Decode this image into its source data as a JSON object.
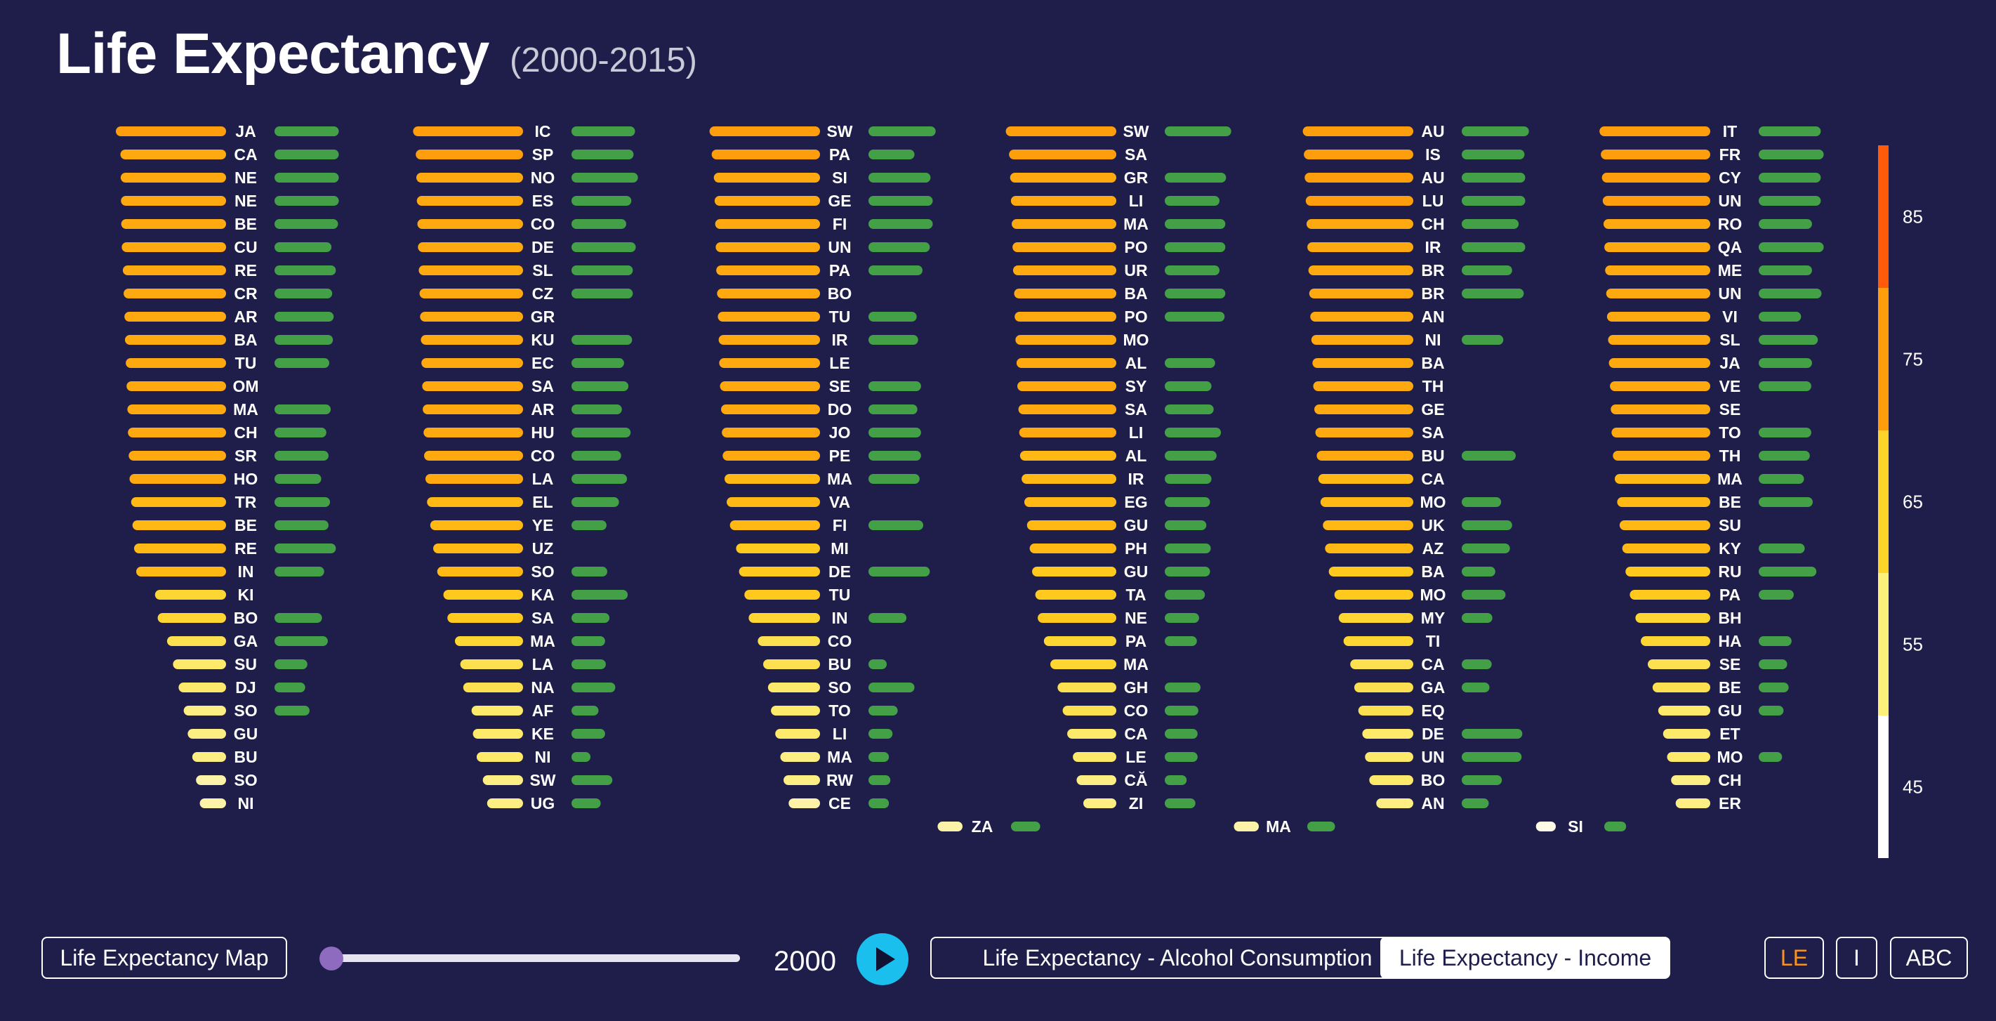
{
  "header": {
    "title": "Life Expectancy",
    "subtitle": "(2000-2015)"
  },
  "controls": {
    "map_button": "Life Expectancy Map",
    "year": "2000",
    "alcohol_button": "Life Expectancy - Alcohol Consumption",
    "income_button": "Life Expectancy - Income",
    "sort_le": "LE",
    "sort_i": "I",
    "sort_abc": "ABC",
    "slider_fraction": 0.0
  },
  "colors": {
    "background": "#1f1e4a",
    "income_bar": "#43a047",
    "play": "#1bbfee",
    "slider_thumb": "#8e6bbf"
  },
  "chart_data": {
    "type": "bar",
    "description_free": true,
    "year": "2000",
    "le_scale": [
      40,
      90
    ],
    "colorbar": {
      "ticks": [
        "85",
        "75",
        "65",
        "55",
        "45"
      ],
      "bands": [
        {
          "from": 80,
          "to": 90,
          "color": "#ff5a0a"
        },
        {
          "from": 70,
          "to": 80,
          "color": "#ff9e0d"
        },
        {
          "from": 60,
          "to": 70,
          "color": "#fdd427"
        },
        {
          "from": 50,
          "to": 60,
          "color": "#fdf07a"
        },
        {
          "from": 40,
          "to": 50,
          "color": "#ffffff"
        }
      ]
    },
    "columns": [
      [
        {
          "code": "JA",
          "le": 81.1,
          "income": 0.88
        },
        {
          "code": "CA",
          "le": 79.4,
          "income": 0.88
        },
        {
          "code": "NE",
          "le": 79.3,
          "income": 0.88
        },
        {
          "code": "NE",
          "le": 79.2,
          "income": 0.88
        },
        {
          "code": "BE",
          "le": 79.1,
          "income": 0.87
        },
        {
          "code": "CU",
          "le": 78.9,
          "income": 0.78
        },
        {
          "code": "RE",
          "le": 78.5,
          "income": 0.84
        },
        {
          "code": "CR",
          "le": 78.2,
          "income": 0.79
        },
        {
          "code": "AR",
          "le": 77.9,
          "income": 0.81
        },
        {
          "code": "BA",
          "le": 77.7,
          "income": 0.8
        },
        {
          "code": "TU",
          "le": 77.4,
          "income": 0.75
        },
        {
          "code": "OM",
          "le": 77.1,
          "income": null
        },
        {
          "code": "MA",
          "le": 76.8,
          "income": 0.77
        },
        {
          "code": "CH",
          "le": 76.6,
          "income": 0.71
        },
        {
          "code": "SR",
          "le": 76.3,
          "income": 0.74
        },
        {
          "code": "HO",
          "le": 76.0,
          "income": 0.64
        },
        {
          "code": "TR",
          "le": 75.4,
          "income": 0.76
        },
        {
          "code": "BE",
          "le": 74.9,
          "income": 0.74
        },
        {
          "code": "RE",
          "le": 74.3,
          "income": 0.84
        },
        {
          "code": "IN",
          "le": 73.5,
          "income": 0.68
        },
        {
          "code": "KI",
          "le": 66.5,
          "income": null
        },
        {
          "code": "BO",
          "le": 65.5,
          "income": 0.65
        },
        {
          "code": "GA",
          "le": 62.0,
          "income": 0.73
        },
        {
          "code": "SU",
          "le": 59.8,
          "income": 0.45
        },
        {
          "code": "DJ",
          "le": 57.7,
          "income": 0.42
        },
        {
          "code": "SO",
          "le": 55.8,
          "income": 0.48
        },
        {
          "code": "GU",
          "le": 54.3,
          "income": null
        },
        {
          "code": "BU",
          "le": 52.6,
          "income": null
        },
        {
          "code": "SO",
          "le": 51.2,
          "income": null
        },
        {
          "code": "NI",
          "le": 49.8,
          "income": null
        }
      ],
      [
        {
          "code": "IC",
          "le": 81.0,
          "income": 0.87
        },
        {
          "code": "SP",
          "le": 80.0,
          "income": 0.85
        },
        {
          "code": "NO",
          "le": 79.8,
          "income": 0.91
        },
        {
          "code": "ES",
          "le": 79.6,
          "income": 0.82
        },
        {
          "code": "CO",
          "le": 79.4,
          "income": 0.75
        },
        {
          "code": "DE",
          "le": 79.2,
          "income": 0.88
        },
        {
          "code": "SL",
          "le": 78.9,
          "income": 0.84
        },
        {
          "code": "CZ",
          "le": 78.6,
          "income": 0.84
        },
        {
          "code": "GR",
          "le": 78.4,
          "income": null
        },
        {
          "code": "KU",
          "le": 78.1,
          "income": 0.83
        },
        {
          "code": "EC",
          "le": 77.9,
          "income": 0.72
        },
        {
          "code": "SA",
          "le": 77.6,
          "income": 0.78
        },
        {
          "code": "AR",
          "le": 77.4,
          "income": 0.69
        },
        {
          "code": "HU",
          "le": 77.1,
          "income": 0.81
        },
        {
          "code": "CO",
          "le": 76.9,
          "income": 0.68
        },
        {
          "code": "LA",
          "le": 76.4,
          "income": 0.76
        },
        {
          "code": "EL",
          "le": 75.8,
          "income": 0.65
        },
        {
          "code": "YE",
          "le": 74.6,
          "income": 0.48
        },
        {
          "code": "UZ",
          "le": 73.5,
          "income": null
        },
        {
          "code": "SO",
          "le": 72.0,
          "income": 0.49
        },
        {
          "code": "KA",
          "le": 69.7,
          "income": 0.77
        },
        {
          "code": "SA",
          "le": 68.2,
          "income": 0.52
        },
        {
          "code": "MA",
          "le": 65.4,
          "income": 0.46
        },
        {
          "code": "LA",
          "le": 63.4,
          "income": 0.47
        },
        {
          "code": "NA",
          "le": 62.3,
          "income": 0.6
        },
        {
          "code": "AF",
          "le": 59.2,
          "income": 0.37
        },
        {
          "code": "KE",
          "le": 58.7,
          "income": 0.46
        },
        {
          "code": "NI",
          "le": 57.3,
          "income": 0.26
        },
        {
          "code": "SW",
          "le": 55.0,
          "income": 0.56
        },
        {
          "code": "UG",
          "le": 53.4,
          "income": 0.4
        }
      ],
      [
        {
          "code": "SW",
          "le": 81.2,
          "income": 0.92
        },
        {
          "code": "PA",
          "le": 80.4,
          "income": 0.63
        },
        {
          "code": "SI",
          "le": 79.6,
          "income": 0.85
        },
        {
          "code": "GE",
          "le": 79.3,
          "income": 0.88
        },
        {
          "code": "FI",
          "le": 79.1,
          "income": 0.88
        },
        {
          "code": "UN",
          "le": 78.9,
          "income": 0.84
        },
        {
          "code": "PA",
          "le": 78.7,
          "income": 0.74
        },
        {
          "code": "BO",
          "le": 78.4,
          "income": null
        },
        {
          "code": "TU",
          "le": 78.1,
          "income": 0.66
        },
        {
          "code": "IR",
          "le": 77.8,
          "income": 0.68
        },
        {
          "code": "LE",
          "le": 77.6,
          "income": null
        },
        {
          "code": "SE",
          "le": 77.3,
          "income": 0.72
        },
        {
          "code": "DO",
          "le": 76.9,
          "income": 0.67
        },
        {
          "code": "JO",
          "le": 76.6,
          "income": 0.72
        },
        {
          "code": "PE",
          "le": 76.3,
          "income": 0.72
        },
        {
          "code": "MA",
          "le": 75.6,
          "income": 0.7
        },
        {
          "code": "VA",
          "le": 74.8,
          "income": null
        },
        {
          "code": "FI",
          "le": 73.6,
          "income": 0.75
        },
        {
          "code": "MI",
          "le": 71.3,
          "income": null
        },
        {
          "code": "DE",
          "le": 70.2,
          "income": 0.84
        },
        {
          "code": "TU",
          "le": 68.2,
          "income": null
        },
        {
          "code": "IN",
          "le": 66.6,
          "income": 0.52
        },
        {
          "code": "CO",
          "le": 63.2,
          "income": null
        },
        {
          "code": "BU",
          "le": 61.2,
          "income": 0.25
        },
        {
          "code": "SO",
          "le": 59.4,
          "income": 0.63
        },
        {
          "code": "TO",
          "le": 58.3,
          "income": 0.4
        },
        {
          "code": "LI",
          "le": 56.7,
          "income": 0.33
        },
        {
          "code": "MA",
          "le": 54.8,
          "income": 0.28
        },
        {
          "code": "RW",
          "le": 53.6,
          "income": 0.3
        },
        {
          "code": "CE",
          "le": 51.7,
          "income": 0.28
        },
        {
          "code": "ZA",
          "le": 49.3,
          "income": 0.4
        }
      ],
      [
        {
          "code": "SW",
          "le": 81.2,
          "income": 0.91
        },
        {
          "code": "SA",
          "le": 80.0,
          "income": null
        },
        {
          "code": "GR",
          "le": 79.6,
          "income": 0.84
        },
        {
          "code": "LI",
          "le": 79.3,
          "income": 0.75
        },
        {
          "code": "MA",
          "le": 79.0,
          "income": 0.83
        },
        {
          "code": "PO",
          "le": 78.7,
          "income": 0.83
        },
        {
          "code": "UR",
          "le": 78.5,
          "income": 0.75
        },
        {
          "code": "BA",
          "le": 78.1,
          "income": 0.83
        },
        {
          "code": "PO",
          "le": 77.9,
          "income": 0.82
        },
        {
          "code": "MO",
          "le": 77.6,
          "income": null
        },
        {
          "code": "AL",
          "le": 77.2,
          "income": 0.69
        },
        {
          "code": "SY",
          "le": 76.9,
          "income": 0.64
        },
        {
          "code": "SA",
          "le": 76.5,
          "income": 0.67
        },
        {
          "code": "LI",
          "le": 76.2,
          "income": 0.77
        },
        {
          "code": "AL",
          "le": 75.9,
          "income": 0.71
        },
        {
          "code": "IR",
          "le": 75.3,
          "income": 0.64
        },
        {
          "code": "EG",
          "le": 74.3,
          "income": 0.62
        },
        {
          "code": "GU",
          "le": 73.3,
          "income": 0.57
        },
        {
          "code": "PH",
          "le": 72.3,
          "income": 0.63
        },
        {
          "code": "GU",
          "le": 71.4,
          "income": 0.62
        },
        {
          "code": "TA",
          "le": 70.2,
          "income": 0.55
        },
        {
          "code": "NE",
          "le": 69.3,
          "income": 0.47
        },
        {
          "code": "PA",
          "le": 67.0,
          "income": 0.44
        },
        {
          "code": "MA",
          "le": 64.6,
          "income": null
        },
        {
          "code": "GH",
          "le": 61.9,
          "income": 0.49
        },
        {
          "code": "CO",
          "le": 60.0,
          "income": 0.46
        },
        {
          "code": "CA",
          "le": 58.3,
          "income": 0.45
        },
        {
          "code": "LE",
          "le": 56.2,
          "income": 0.45
        },
        {
          "code": "CĂ",
          "le": 54.8,
          "income": 0.3
        },
        {
          "code": "ZI",
          "le": 52.3,
          "income": 0.42
        },
        {
          "code": "MA",
          "le": 49.3,
          "income": 0.38
        }
      ],
      [
        {
          "code": "AU",
          "le": 81.2,
          "income": 0.92
        },
        {
          "code": "IS",
          "le": 80.8,
          "income": 0.86
        },
        {
          "code": "AU",
          "le": 80.5,
          "income": 0.87
        },
        {
          "code": "LU",
          "le": 80.1,
          "income": 0.87
        },
        {
          "code": "CH",
          "le": 79.8,
          "income": 0.78
        },
        {
          "code": "IR",
          "le": 79.5,
          "income": 0.87
        },
        {
          "code": "BR",
          "le": 79.1,
          "income": 0.69
        },
        {
          "code": "BR",
          "le": 78.8,
          "income": 0.85
        },
        {
          "code": "AN",
          "le": 78.4,
          "income": null
        },
        {
          "code": "NI",
          "le": 78.0,
          "income": 0.57
        },
        {
          "code": "BA",
          "le": 77.6,
          "income": null
        },
        {
          "code": "TH",
          "le": 77.3,
          "income": null
        },
        {
          "code": "GE",
          "le": 76.9,
          "income": null
        },
        {
          "code": "SA",
          "le": 76.5,
          "income": null
        },
        {
          "code": "BU",
          "le": 76.0,
          "income": 0.74
        },
        {
          "code": "CA",
          "le": 75.4,
          "income": null
        },
        {
          "code": "MO",
          "le": 74.6,
          "income": 0.54
        },
        {
          "code": "UK",
          "le": 73.7,
          "income": 0.69
        },
        {
          "code": "AZ",
          "le": 72.9,
          "income": 0.66
        },
        {
          "code": "BA",
          "le": 71.5,
          "income": 0.46
        },
        {
          "code": "MO",
          "le": 69.4,
          "income": 0.6
        },
        {
          "code": "MY",
          "le": 67.8,
          "income": 0.42
        },
        {
          "code": "TI",
          "le": 66.0,
          "income": null
        },
        {
          "code": "CA",
          "le": 63.5,
          "income": 0.41
        },
        {
          "code": "GA",
          "le": 62.0,
          "income": 0.38
        },
        {
          "code": "EQ",
          "le": 60.5,
          "income": null
        },
        {
          "code": "DE",
          "le": 59.0,
          "income": 0.83
        },
        {
          "code": "UN",
          "le": 58.0,
          "income": 0.82
        },
        {
          "code": "BO",
          "le": 56.4,
          "income": 0.55
        },
        {
          "code": "AN",
          "le": 53.8,
          "income": 0.37
        },
        {
          "code": "SI",
          "le": 47.4,
          "income": 0.3
        }
      ],
      [
        {
          "code": "IT",
          "le": 81.3,
          "income": 0.85
        },
        {
          "code": "FR",
          "le": 80.8,
          "income": 0.89
        },
        {
          "code": "CY",
          "le": 80.4,
          "income": 0.85
        },
        {
          "code": "UN",
          "le": 80.1,
          "income": 0.85
        },
        {
          "code": "RO",
          "le": 79.8,
          "income": 0.73
        },
        {
          "code": "QA",
          "le": 79.5,
          "income": 0.89
        },
        {
          "code": "ME",
          "le": 79.2,
          "income": 0.73
        },
        {
          "code": "UN",
          "le": 78.8,
          "income": 0.86
        },
        {
          "code": "VI",
          "le": 78.5,
          "income": 0.58
        },
        {
          "code": "SL",
          "le": 78.1,
          "income": 0.81
        },
        {
          "code": "JA",
          "le": 77.8,
          "income": 0.73
        },
        {
          "code": "VE",
          "le": 77.4,
          "income": 0.72
        },
        {
          "code": "SE",
          "le": 77.1,
          "income": null
        },
        {
          "code": "TO",
          "le": 76.8,
          "income": 0.72
        },
        {
          "code": "TH",
          "le": 76.3,
          "income": 0.7
        },
        {
          "code": "MA",
          "le": 75.6,
          "income": 0.62
        },
        {
          "code": "BE",
          "le": 74.7,
          "income": 0.74
        },
        {
          "code": "SU",
          "le": 73.8,
          "income": null
        },
        {
          "code": "KY",
          "le": 72.8,
          "income": 0.63
        },
        {
          "code": "RU",
          "le": 71.6,
          "income": 0.79
        },
        {
          "code": "PA",
          "le": 70.0,
          "income": 0.48
        },
        {
          "code": "BH",
          "le": 67.9,
          "income": null
        },
        {
          "code": "HA",
          "le": 65.9,
          "income": 0.45
        },
        {
          "code": "SE",
          "le": 63.3,
          "income": 0.39
        },
        {
          "code": "BE",
          "le": 61.5,
          "income": 0.41
        },
        {
          "code": "GU",
          "le": 59.4,
          "income": 0.34
        },
        {
          "code": "ET",
          "le": 57.6,
          "income": null
        },
        {
          "code": "MO",
          "le": 56.1,
          "income": 0.32
        },
        {
          "code": "CH",
          "le": 54.6,
          "income": null
        },
        {
          "code": "ER",
          "le": 52.9,
          "income": null
        }
      ]
    ]
  }
}
